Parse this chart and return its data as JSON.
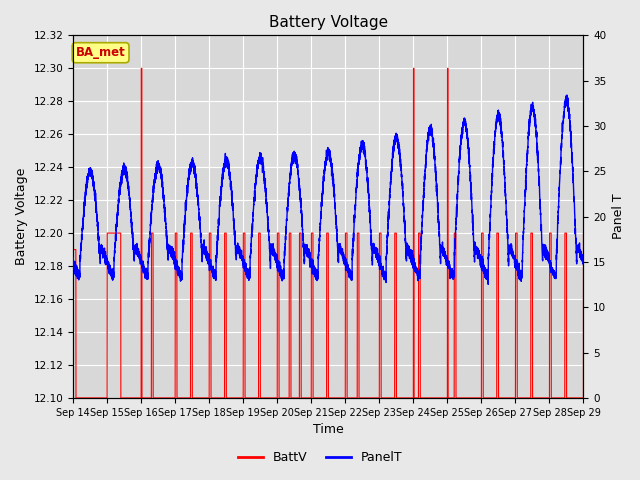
{
  "title": "Battery Voltage",
  "xlabel": "Time",
  "ylabel_left": "Battery Voltage",
  "ylabel_right": "Panel T",
  "annotation": "BA_met",
  "x_tick_labels": [
    "Sep 14",
    "Sep 15",
    "Sep 16",
    "Sep 17",
    "Sep 18",
    "Sep 19",
    "Sep 20",
    "Sep 21",
    "Sep 22",
    "Sep 23",
    "Sep 24",
    "Sep 25",
    "Sep 26",
    "Sep 27",
    "Sep 28",
    "Sep 29"
  ],
  "ylim_left": [
    12.1,
    12.32
  ],
  "ylim_right": [
    0,
    40
  ],
  "yticks_left": [
    12.1,
    12.12,
    12.14,
    12.16,
    12.18,
    12.2,
    12.22,
    12.24,
    12.26,
    12.28,
    12.3,
    12.32
  ],
  "yticks_right": [
    0,
    5,
    10,
    15,
    20,
    25,
    30,
    35,
    40
  ],
  "batt_color": "#FF0000",
  "panel_color": "#0000FF",
  "bg_color": "#E8E8E8",
  "plot_bg": "#D8D8D8",
  "legend_items": [
    "BattV",
    "PanelT"
  ],
  "annotation_box_color": "#FFFF88",
  "annotation_text_color": "#CC0000",
  "annotation_border_color": "#AAAA00",
  "figsize": [
    6.4,
    4.8
  ],
  "dpi": 100,
  "batt_base": 12.2,
  "batt_high": 12.3,
  "batt_low": 12.1,
  "panel_base_low": 15,
  "panel_base_high": 35
}
